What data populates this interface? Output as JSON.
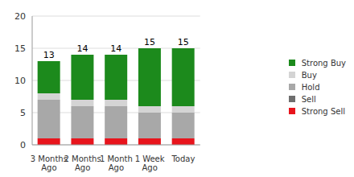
{
  "chart_data": {
    "type": "bar",
    "stacked": true,
    "grid": true,
    "legend": "right",
    "categories": [
      "3 Months Ago",
      "2 Months Ago",
      "1 Month Ago",
      "1 Week Ago",
      "Today"
    ],
    "ylim": [
      0,
      20
    ],
    "yticks": [
      0,
      5,
      10,
      15,
      20
    ],
    "series": [
      {
        "name": "Strong Sell",
        "color": "#e8141c",
        "values": [
          1,
          1,
          1,
          1,
          1
        ]
      },
      {
        "name": "Sell",
        "color": "#6e6e6e",
        "values": [
          0,
          0,
          0,
          0,
          0
        ]
      },
      {
        "name": "Hold",
        "color": "#a8a8a8",
        "values": [
          6,
          5,
          5,
          4,
          4
        ]
      },
      {
        "name": "Buy",
        "color": "#d4d4d4",
        "values": [
          1,
          1,
          1,
          1,
          1
        ]
      },
      {
        "name": "Strong Buy",
        "color": "#1c8a1c",
        "values": [
          5,
          7,
          7,
          9,
          9
        ]
      }
    ],
    "totals": [
      13,
      14,
      14,
      15,
      15
    ]
  }
}
